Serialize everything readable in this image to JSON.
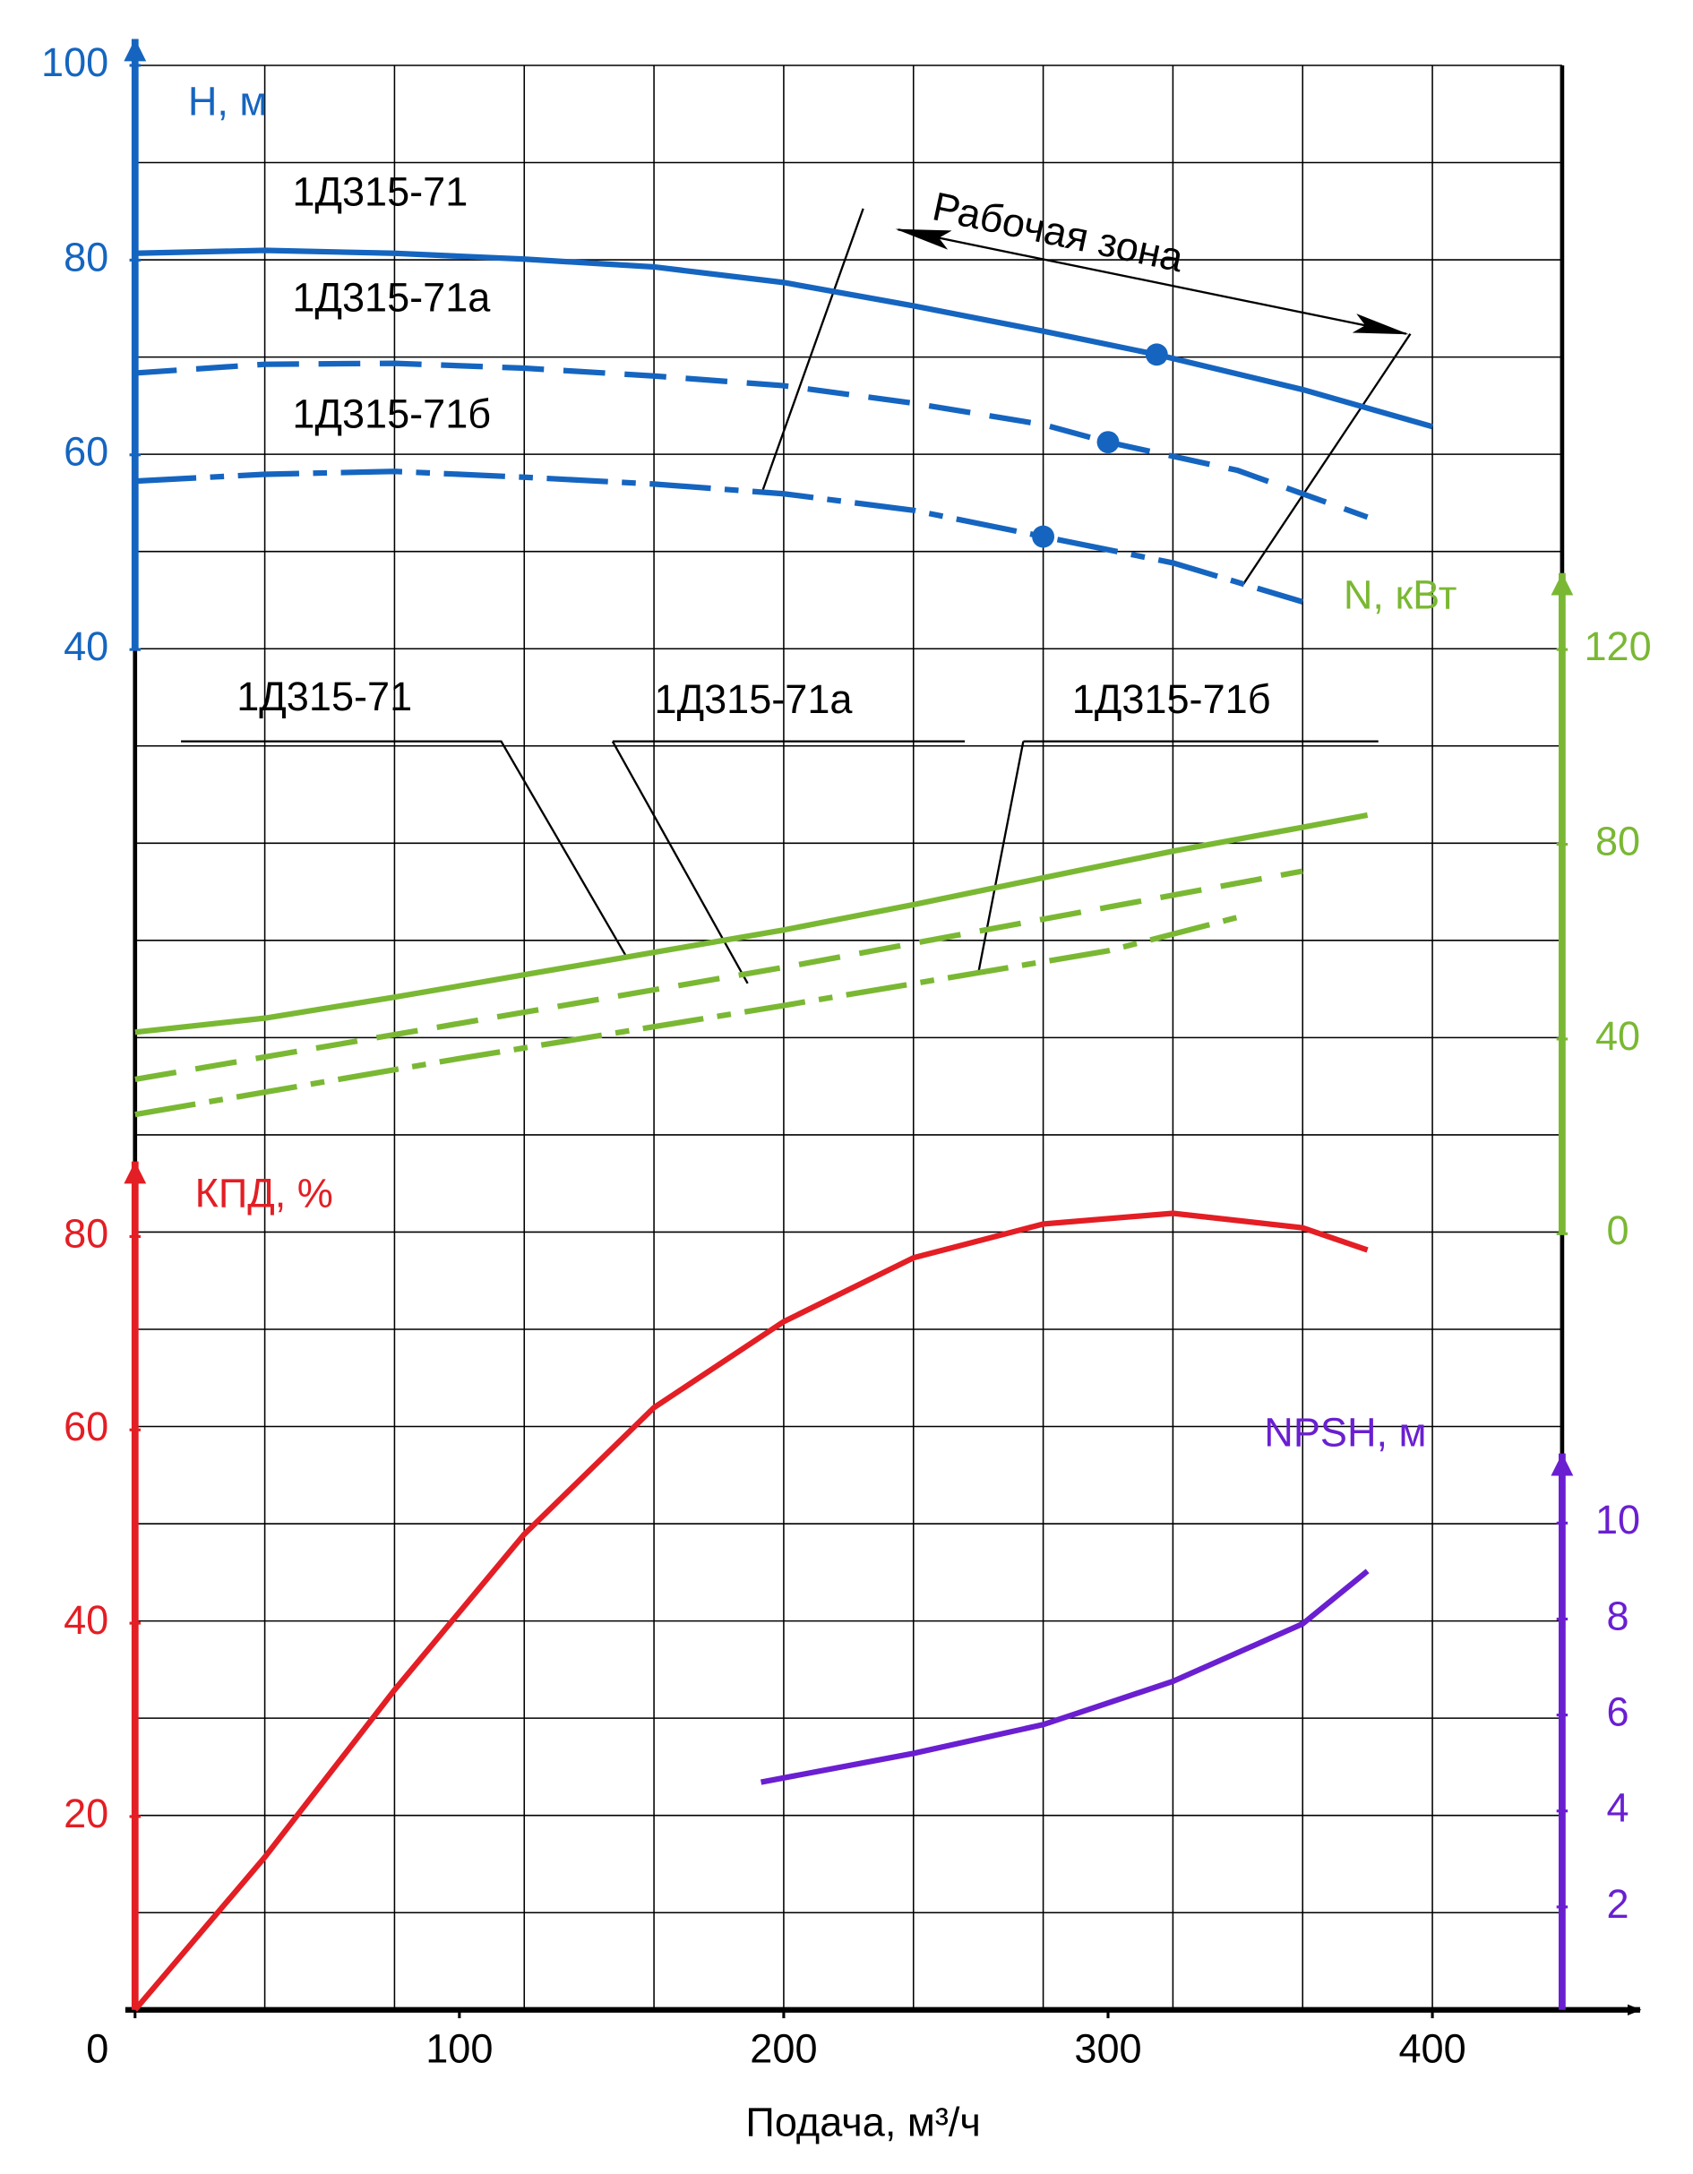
{
  "chart_data": {
    "type": "line",
    "x_label": "Подача, м³/ч",
    "xlim": [
      0,
      440
    ],
    "xticks": [
      0,
      100,
      200,
      300,
      400
    ],
    "grid": true,
    "axes": [
      {
        "label": "H, м",
        "color": "#1565c0",
        "side": "left",
        "lim": [
          40,
          100
        ],
        "ticks": [
          40,
          60,
          80,
          100
        ]
      },
      {
        "label": "N, кВт",
        "color": "#7ab833",
        "side": "right",
        "lim": [
          0,
          120
        ],
        "ticks": [
          0,
          40,
          80,
          120
        ]
      },
      {
        "label": "КПД, %",
        "color": "#e31e24",
        "side": "left",
        "lim": [
          0,
          80
        ],
        "ticks": [
          20,
          40,
          60,
          80
        ]
      },
      {
        "label": "NPSH, м",
        "color": "#6a1fd1",
        "side": "right",
        "lim": [
          0,
          10
        ],
        "ticks": [
          2,
          4,
          6,
          8,
          10
        ]
      }
    ],
    "series": [
      {
        "name": "1Д315-71",
        "color": "#1565c0",
        "style": "solid",
        "axis": 0,
        "x": [
          0,
          40,
          80,
          120,
          160,
          200,
          240,
          280,
          315,
          360,
          400
        ],
        "values": [
          80.7,
          81,
          80.7,
          80.1,
          79.3,
          77.7,
          75.3,
          72.7,
          70.3,
          66.7,
          62.9
        ],
        "duty": [
          315,
          70.3
        ]
      },
      {
        "name": "1Д315-71а",
        "color": "#1565c0",
        "style": "dashed",
        "axis": 0,
        "x": [
          0,
          40,
          80,
          120,
          160,
          200,
          240,
          280,
          300,
          340,
          380
        ],
        "values": [
          68.4,
          69.3,
          69.4,
          68.9,
          68.1,
          67.1,
          65.3,
          63.1,
          61.3,
          58.4,
          53.6
        ],
        "duty": [
          300,
          61.3
        ]
      },
      {
        "name": "1Д315-71б",
        "color": "#1565c0",
        "style": "dashdot",
        "axis": 0,
        "x": [
          0,
          40,
          80,
          120,
          160,
          200,
          240,
          280,
          320,
          360
        ],
        "values": [
          57.3,
          58,
          58.3,
          57.7,
          57,
          56,
          54.3,
          51.6,
          48.9,
          44.9
        ],
        "duty": [
          280,
          51.6
        ]
      },
      {
        "name": "1Д315-71",
        "color": "#7ab833",
        "style": "solid",
        "axis": 1,
        "x": [
          0,
          40,
          80,
          120,
          160,
          200,
          240,
          280,
          320,
          360,
          380
        ],
        "values": [
          41.4,
          44.3,
          48.6,
          53.2,
          57.8,
          62.4,
          67.6,
          73.1,
          78.6,
          83.5,
          86
        ]
      },
      {
        "name": "1Д315-71а",
        "color": "#7ab833",
        "style": "dashed",
        "axis": 1,
        "x": [
          0,
          100,
          200,
          300,
          360
        ],
        "values": [
          31.7,
          43.2,
          54.7,
          67.1,
          74.5
        ]
      },
      {
        "name": "1Д315-71б",
        "color": "#7ab833",
        "style": "dashdot",
        "axis": 1,
        "x": [
          0,
          100,
          200,
          300,
          340
        ],
        "values": [
          24.5,
          36,
          46.9,
          58.1,
          65
        ]
      },
      {
        "name": "КПД",
        "color": "#e31e24",
        "style": "solid",
        "axis": 2,
        "x": [
          0,
          40,
          80,
          120,
          160,
          200,
          240,
          280,
          320,
          360,
          380
        ],
        "values": [
          0,
          15.8,
          33.1,
          49.2,
          62.3,
          71.2,
          77.8,
          81.3,
          82.4,
          80.9,
          78.6
        ]
      },
      {
        "name": "NPSH",
        "color": "#6a1fd1",
        "style": "solid",
        "axis": 3,
        "x": [
          193,
          240,
          280,
          320,
          360,
          380
        ],
        "values": [
          4.6,
          5.2,
          5.8,
          6.7,
          7.9,
          9.0
        ]
      }
    ],
    "annotations": {
      "work_zone": "Рабочая зона"
    }
  }
}
